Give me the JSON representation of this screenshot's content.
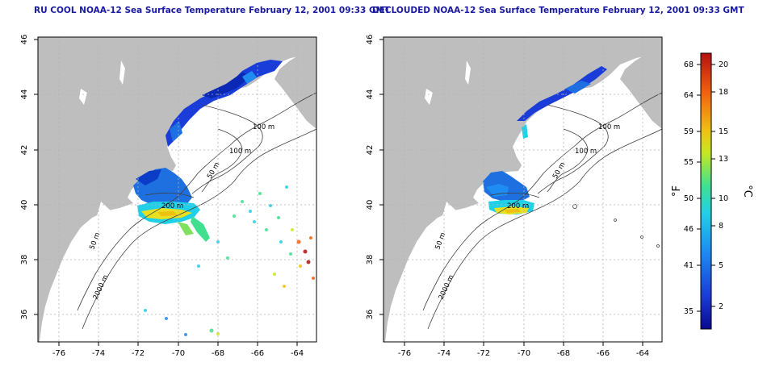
{
  "left_panel": {
    "title": "RU COOL NOAA-12 Sea Surface Temperature February 12, 2001 09:33 GMT",
    "x_ticks": [
      "-76",
      "-74",
      "-72",
      "-70",
      "-68",
      "-66",
      "-64"
    ],
    "y_ticks": [
      "46",
      "44",
      "42",
      "40",
      "38",
      "36"
    ],
    "contour_labels": [
      "100 m",
      "100 m",
      "50 m",
      "200 m",
      "50 m",
      "2000 m"
    ]
  },
  "right_panel": {
    "title": "DECLOUDED NOAA-12 Sea Surface Temperature February 12, 2001 09:33 GMT",
    "x_ticks": [
      "-76",
      "-74",
      "-72",
      "-70",
      "-68",
      "-66",
      "-64"
    ],
    "y_ticks": [
      "46",
      "44",
      "42",
      "40",
      "38",
      "36"
    ],
    "contour_labels": [
      "100 m",
      "100 m",
      "50 m",
      "200 m",
      "50 m",
      "2000 m"
    ]
  },
  "colorbar": {
    "fahrenheit_label": "°F",
    "celsius_label": "°C",
    "fahrenheit_ticks": [
      "68",
      "64",
      "59",
      "55",
      "50",
      "46",
      "41",
      "35"
    ],
    "celsius_ticks": [
      "20",
      "18",
      "15",
      "13",
      "10",
      "8",
      "5",
      "2"
    ],
    "colors": [
      "#0a0a8c",
      "#1a3cd8",
      "#1e8cf0",
      "#20d0e8",
      "#40e090",
      "#c8e820",
      "#f0c010",
      "#f06010",
      "#b41010"
    ]
  },
  "map_colors": {
    "land": "#bebebe",
    "ocean": "#ffffff",
    "grid": "#b4b4b4",
    "contour": "#404040"
  }
}
